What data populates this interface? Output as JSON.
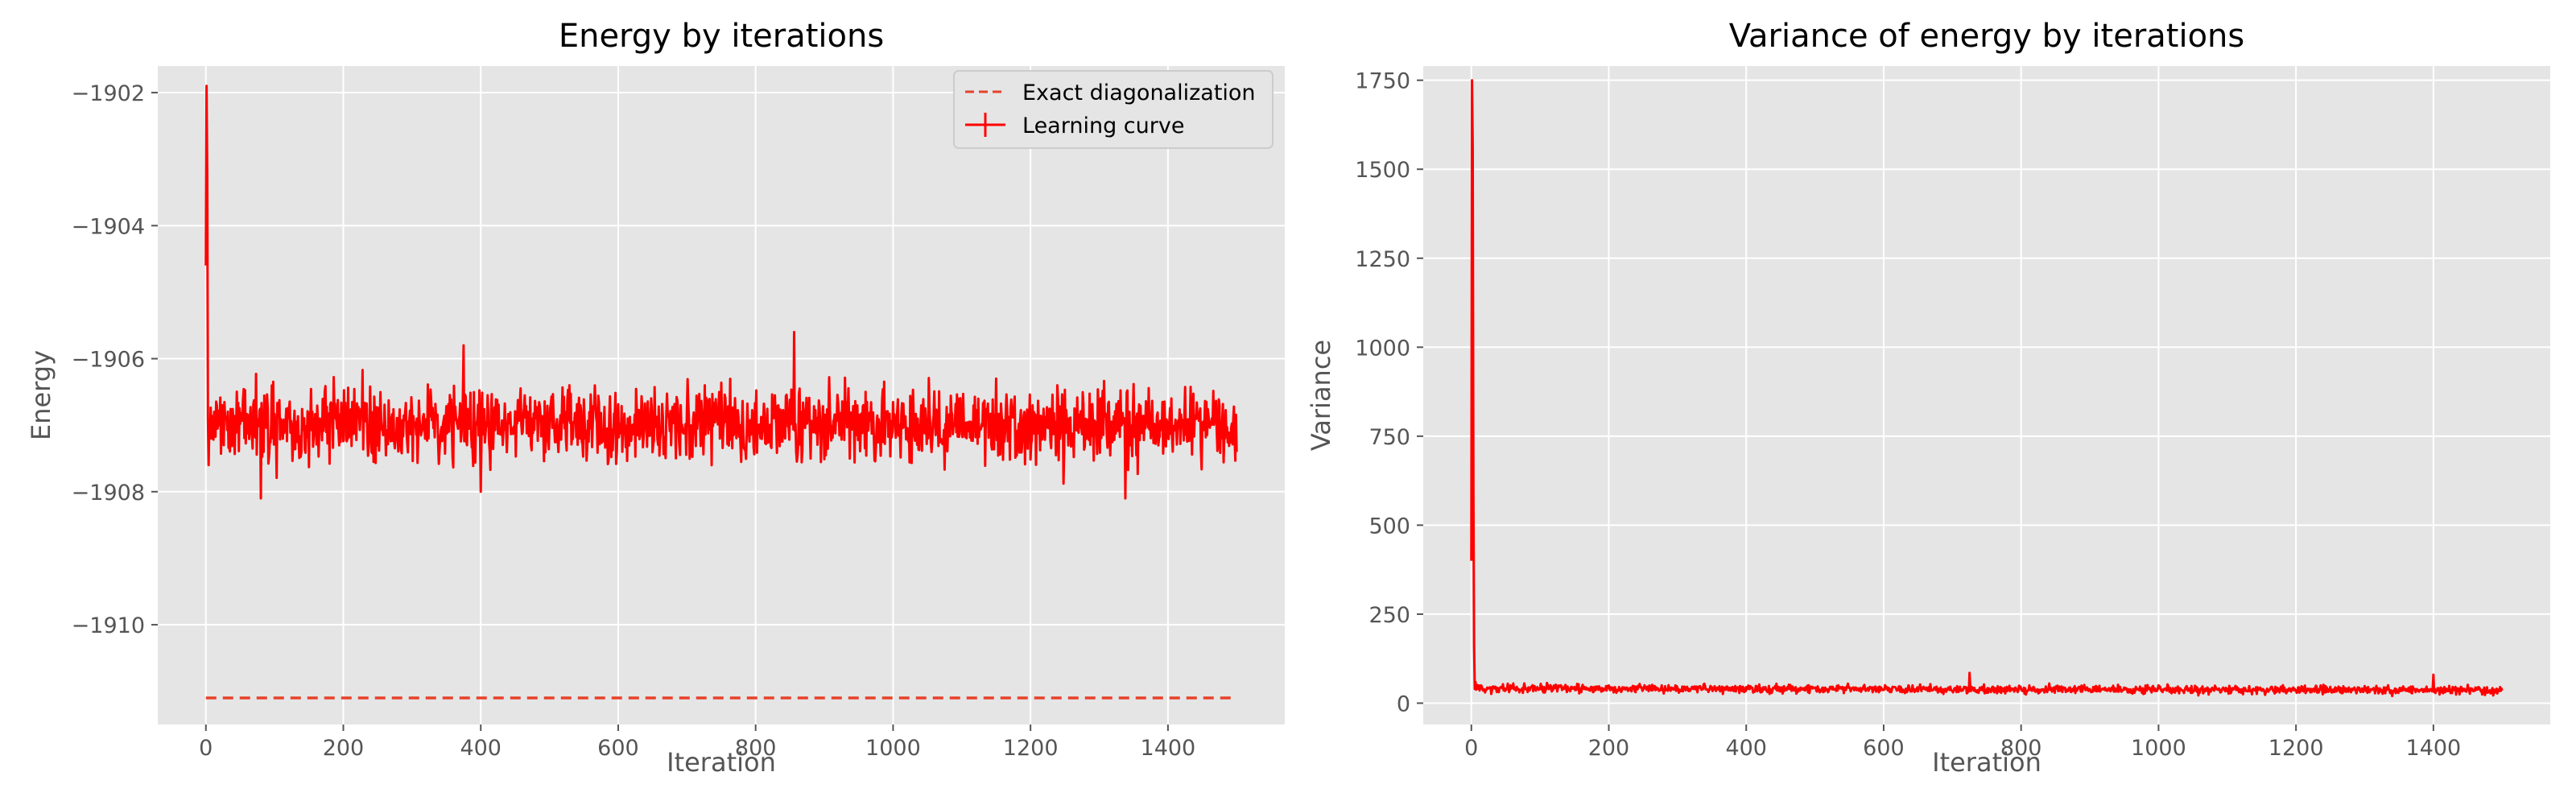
{
  "chart_data": [
    {
      "type": "line",
      "title": "Energy by iterations",
      "xlabel": "Iteration",
      "ylabel": "Energy",
      "xlim": [
        -70,
        1570
      ],
      "ylim": [
        -1911.5,
        -1901.6
      ],
      "xticks": [
        0,
        200,
        400,
        600,
        800,
        1000,
        1200,
        1400
      ],
      "xtick_labels": [
        "0",
        "200",
        "400",
        "600",
        "800",
        "1000",
        "1200",
        "1400"
      ],
      "yticks": [
        -1910,
        -1908,
        -1906,
        -1904,
        -1902
      ],
      "ytick_labels": [
        "−1910",
        "−1908",
        "−1906",
        "−1904",
        "−1902"
      ],
      "grid": true,
      "legend": {
        "position": "top-right",
        "entries": [
          "Exact diagonalization",
          "Learning curve"
        ]
      },
      "series": [
        {
          "name": "Exact diagonalization",
          "style": "dashed",
          "color": "#e8412a",
          "x": [
            0,
            1500
          ],
          "y": [
            -1911.1,
            -1911.1
          ]
        },
        {
          "name": "Learning curve",
          "style": "solid-errorbar",
          "color": "#ff0000",
          "description_points": {
            "x": [
              0,
              1,
              2,
              3,
              4,
              5,
              8,
              12,
              20,
              80,
              375,
              400,
              856,
              1338,
              1345,
              1500
            ],
            "y": [
              -1904.6,
              -1901.9,
              -1903.3,
              -1906.9,
              -1907.6,
              -1907.0,
              -1907.2,
              -1906.8,
              -1907.0,
              -1908.1,
              -1905.8,
              -1908.0,
              -1905.6,
              -1908.1,
              -1907.3,
              -1907.4
            ]
          },
          "iterations": 1500,
          "mean": -1907.0,
          "fluctuation_range": [
            -1908.1,
            -1905.6
          ]
        }
      ]
    },
    {
      "type": "line",
      "title": "Variance of energy by iterations",
      "xlabel": "Iteration",
      "ylabel": "Variance",
      "xlim": [
        -70,
        1570
      ],
      "ylim": [
        -60,
        1790
      ],
      "xticks": [
        0,
        200,
        400,
        600,
        800,
        1000,
        1200,
        1400
      ],
      "xtick_labels": [
        "0",
        "200",
        "400",
        "600",
        "800",
        "1000",
        "1200",
        "1400"
      ],
      "yticks": [
        0,
        250,
        500,
        750,
        1000,
        1250,
        1500,
        1750
      ],
      "ytick_labels": [
        "0",
        "250",
        "500",
        "750",
        "1000",
        "1250",
        "1500",
        "1750"
      ],
      "grid": true,
      "series": [
        {
          "color": "#ff0000",
          "description_points": {
            "x": [
              0,
              1,
              2,
              3,
              4,
              6,
              10,
              20,
              100,
              400,
              725,
              1000,
              1340,
              1400,
              1500
            ],
            "y": [
              400,
              1750,
              1560,
              600,
              160,
              60,
              40,
              30,
              40,
              45,
              85,
              50,
              20,
              80,
              35
            ]
          },
          "iterations": 1500
        }
      ]
    }
  ]
}
